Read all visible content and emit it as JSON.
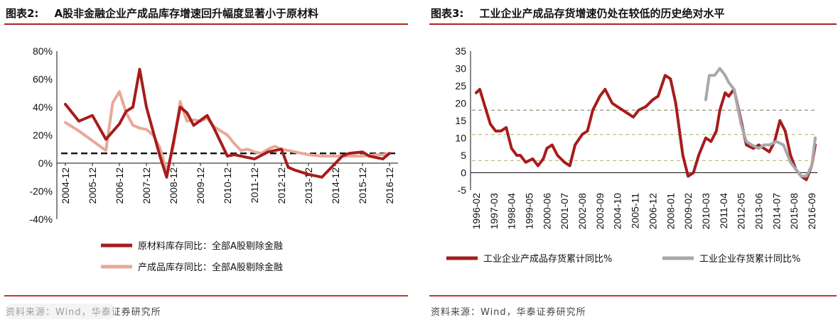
{
  "charts": {
    "left": {
      "figure_label": "图表2:",
      "title": "A股非金融企业产成品库存增速回升幅度显著小于原材料",
      "source": "资料来源：Wind，华泰证券研究所",
      "legend": [
        "原材料库存同比：全部A股剔除金融",
        "产成品库存同比：全部A股剔除金融"
      ]
    },
    "right": {
      "figure_label": "图表3:",
      "title": "工业企业产成品存货增速仍处在较低的历史绝对水平",
      "source": "资料来源：Wind，华泰证券研究所",
      "legend": [
        "工业企业产成品存货累计同比%",
        "工业企业存货累计同比%"
      ]
    }
  },
  "chart_data": [
    {
      "type": "line",
      "title": "A股非金融企业产成品库存增速回升幅度显著小于原材料",
      "categories": [
        "2004-12",
        "2005-12",
        "2006-12",
        "2007-12",
        "2008-12",
        "2009-12",
        "2010-12",
        "2011-12",
        "2012-12",
        "2013-12",
        "2014-12",
        "2015-12",
        "2016-12"
      ],
      "x_units_per_category": 4,
      "ylim": [
        -40,
        80
      ],
      "yticks": [
        -40,
        -20,
        0,
        20,
        40,
        60,
        80
      ],
      "ytick_format": "percent",
      "reference_line": 7,
      "series": [
        {
          "name": "原材料库存同比：全部A股剔除金融",
          "color": "#a61c1c",
          "width": 4,
          "x": [
            0,
            2,
            4,
            6,
            8,
            9,
            10,
            11,
            12,
            14,
            15,
            16,
            17,
            18,
            19,
            21,
            22,
            24,
            25,
            26,
            28,
            30,
            32,
            33,
            34,
            36,
            37,
            38,
            39,
            40,
            41,
            42,
            44,
            45,
            46,
            47,
            48
          ],
          "values": [
            42,
            30,
            34,
            17,
            28,
            37,
            40,
            67,
            40,
            5,
            -10,
            15,
            40,
            36,
            27,
            34,
            25,
            5,
            6,
            5,
            3,
            8,
            10,
            -3,
            -5,
            -8,
            -9,
            -10,
            -5,
            0,
            5,
            7,
            8,
            5,
            4,
            3,
            7
          ]
        },
        {
          "name": "产成品库存同比：全部A股剔除金融",
          "color": "#e8a898",
          "width": 4,
          "x": [
            0,
            2,
            4,
            6,
            7,
            8,
            9,
            10,
            11,
            12,
            13,
            14,
            15,
            16,
            17,
            18,
            19,
            20,
            21,
            22,
            23,
            24,
            25,
            26,
            27,
            28,
            29,
            30,
            31,
            32,
            33,
            34,
            35,
            36,
            38,
            40,
            42,
            44,
            46,
            47,
            48
          ],
          "values": [
            29,
            23,
            16,
            9,
            43,
            51,
            36,
            27,
            25,
            24,
            20,
            11,
            -6,
            12,
            44,
            30,
            31,
            30,
            32,
            26,
            23,
            20,
            14,
            9,
            10,
            8,
            7,
            10,
            12,
            10,
            9,
            8,
            7,
            6,
            5,
            5,
            5,
            5,
            6,
            6,
            7
          ]
        }
      ]
    },
    {
      "type": "line",
      "title": "工业企业产成品存货增速仍处在较低的历史绝对水平",
      "categories": [
        "1996-02",
        "1997-03",
        "1998-04",
        "1999-05",
        "2000-06",
        "2001-07",
        "2002-08",
        "2003-09",
        "2004-10",
        "2005-11",
        "2006-12",
        "2008-01",
        "2009-02",
        "2010-03",
        "2011-04",
        "2012-05",
        "2013-06",
        "2014-07",
        "2015-08",
        "2016-09"
      ],
      "ylim": [
        -5,
        35
      ],
      "yticks": [
        -5,
        0,
        5,
        10,
        15,
        20,
        25,
        30,
        35
      ],
      "reference_lines": [
        18,
        11,
        3.5
      ],
      "series": [
        {
          "name": "工业企业产成品存货累计同比%",
          "color": "#a61c1c",
          "width": 4,
          "x": [
            0,
            0.2,
            0.5,
            0.8,
            1.1,
            1.4,
            1.7,
            2.0,
            2.3,
            2.5,
            2.8,
            3.2,
            3.5,
            3.8,
            4.0,
            4.3,
            4.6,
            5.0,
            5.3,
            5.6,
            6.0,
            6.3,
            6.6,
            7.0,
            7.3,
            7.7,
            8.0,
            8.3,
            8.6,
            8.9,
            9.2,
            9.6,
            10.0,
            10.3,
            10.7,
            11.0,
            11.3,
            11.7,
            12.0,
            12.3,
            12.6,
            13.0,
            13.3,
            13.6,
            13.8,
            14.1,
            14.3,
            14.6,
            15.0,
            15.3,
            15.7,
            16.0,
            16.3,
            16.6,
            16.9,
            17.2,
            17.5,
            17.8,
            18.1,
            18.4,
            18.7,
            19.0,
            19.2
          ],
          "values": [
            23,
            24,
            19,
            14,
            12,
            12,
            13,
            7,
            5,
            5,
            3,
            4,
            2,
            4,
            7,
            8,
            5,
            3,
            2,
            8,
            11,
            12,
            18,
            22,
            24,
            20,
            19,
            18,
            17,
            16,
            18,
            19,
            21,
            22,
            28,
            27,
            20,
            5,
            -1,
            0,
            5,
            10,
            9,
            12,
            18,
            23,
            22,
            24,
            15,
            8,
            7,
            8,
            7,
            6,
            9,
            15,
            12,
            5,
            1,
            -1,
            -2,
            2,
            8
          ]
        },
        {
          "name": "工业企业存货累计同比%",
          "color": "#a8a8ac",
          "width": 4,
          "x": [
            13.0,
            13.2,
            13.5,
            13.8,
            14.1,
            14.3,
            14.6,
            15.0,
            15.3,
            15.6,
            16.0,
            16.3,
            16.6,
            17.0,
            17.4,
            17.8,
            18.1,
            18.4,
            18.7,
            19.0,
            19.2
          ],
          "values": [
            21,
            28,
            28,
            30,
            28,
            26,
            24,
            14,
            9,
            8,
            7,
            8,
            8,
            9,
            8,
            3,
            1,
            -1,
            -1,
            2,
            10
          ]
        }
      ]
    }
  ]
}
